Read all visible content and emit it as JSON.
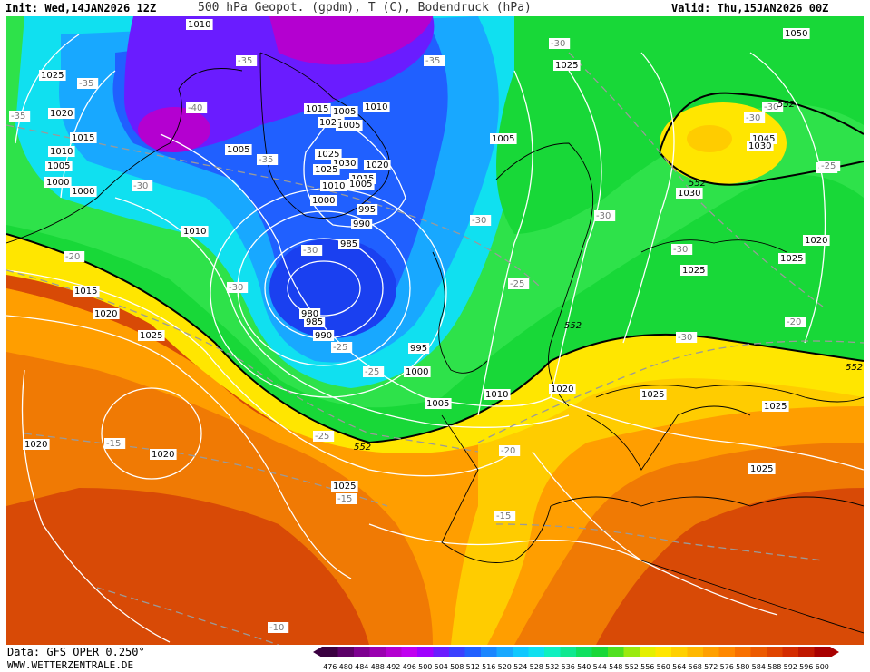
{
  "header": {
    "init": "Init: Wed,14JAN2026 12Z",
    "title": "500 hPa Geopot. (gpdm), T (C), Bodendruck (hPa)",
    "valid": "Valid: Thu,15JAN2026 00Z"
  },
  "footer": {
    "data_source": "Data: GFS OPER 0.250°",
    "website": "WWW.WETTERZENTRALE.DE"
  },
  "legend": {
    "values": [
      "476",
      "480",
      "484",
      "488",
      "492",
      "496",
      "500",
      "504",
      "508",
      "512",
      "516",
      "520",
      "524",
      "528",
      "532",
      "536",
      "540",
      "544",
      "548",
      "552",
      "556",
      "560",
      "564",
      "568",
      "572",
      "576",
      "580",
      "584",
      "588",
      "592",
      "596",
      "600"
    ],
    "colors": [
      "#3a0040",
      "#5c0068",
      "#7d0090",
      "#9a00b0",
      "#b400d0",
      "#c000f0",
      "#9f00ff",
      "#6a1cff",
      "#3a40ff",
      "#2060ff",
      "#1a86ff",
      "#18a8ff",
      "#10c8ff",
      "#10e0f0",
      "#10f0c0",
      "#10e890",
      "#10e060",
      "#18d838",
      "#50e020",
      "#9aea10",
      "#e4f000",
      "#ffe600",
      "#ffd000",
      "#ffb800",
      "#ffa000",
      "#ff8800",
      "#f87000",
      "#ec5a00",
      "#e04400",
      "#d42c00",
      "#c01800",
      "#a80000"
    ]
  },
  "pressure_labels": [
    "1010",
    "1025",
    "1020",
    "1015",
    "1010",
    "1005",
    "1000",
    "1000",
    "1005",
    "1010",
    "1015",
    "1020",
    "1025",
    "1025",
    "1030",
    "1015",
    "1020",
    "1005",
    "1010",
    "1015",
    "1005",
    "1025",
    "1020",
    "1010",
    "1005",
    "1000",
    "995",
    "990",
    "985",
    "980",
    "985",
    "990",
    "995",
    "1000",
    "1005",
    "1010",
    "1005",
    "1025",
    "1050",
    "1045",
    "1030",
    "1030",
    "1020",
    "1025",
    "1025",
    "1020",
    "1025",
    "1025",
    "1025",
    "1020",
    "1020",
    "1025"
  ],
  "temp_labels": [
    "-35",
    "-35",
    "-40",
    "-35",
    "-35",
    "-30",
    "-30",
    "-35",
    "-30",
    "-30",
    "-30",
    "-25",
    "-30",
    "-30",
    "-20",
    "-30",
    "-35",
    "-30",
    "-25",
    "-20",
    "-25",
    "-25",
    "-15",
    "-15",
    "-20",
    "-15",
    "-10",
    "-30",
    "-25"
  ],
  "height_labels": [
    "552",
    "552",
    "552",
    "552",
    "552"
  ]
}
